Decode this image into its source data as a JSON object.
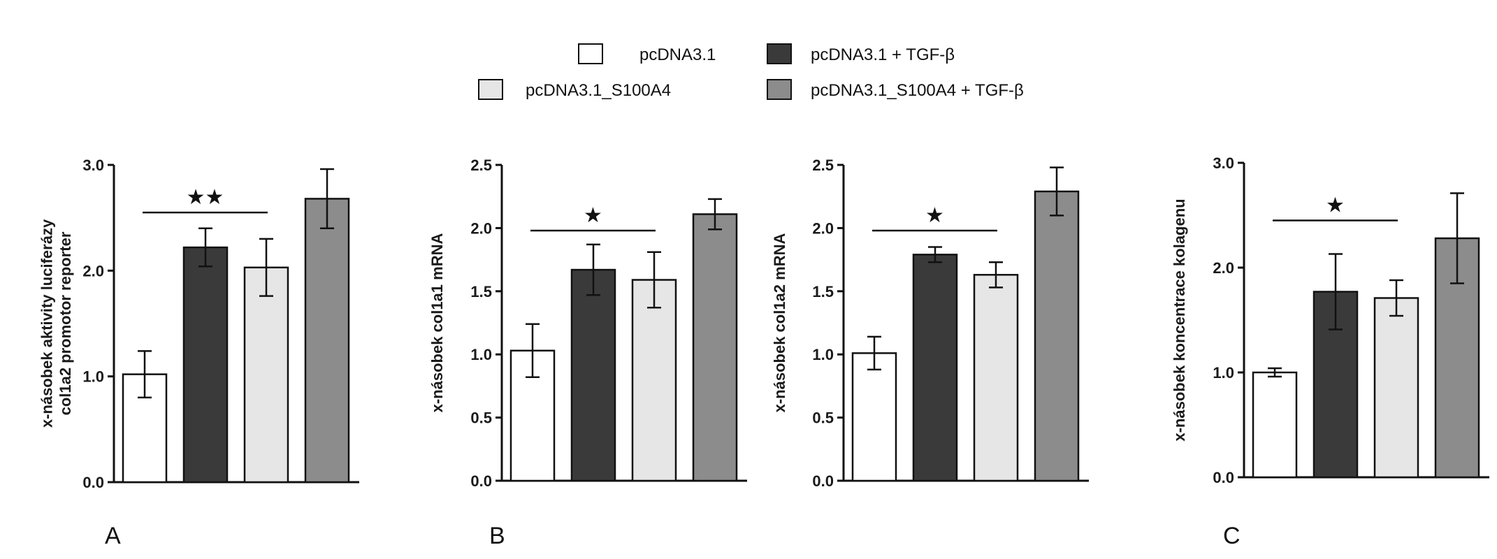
{
  "legend": [
    {
      "label": "pcDNA3.1",
      "color": "#ffffff"
    },
    {
      "label": "pcDNA3.1 + TGF-β",
      "color": "#3a3a3a"
    },
    {
      "label": "pcDNA3.1_S100A4",
      "color": "#e6e6e6"
    },
    {
      "label": "pcDNA3.1_S100A4 + TGF-β",
      "color": "#8c8c8c"
    }
  ],
  "panel_labels": {
    "a": "A",
    "b": "B",
    "c": "C"
  },
  "chart_data": [
    {
      "type": "bar",
      "categories": [
        "pcDNA3.1",
        "pcDNA3.1 + TGF-β",
        "pcDNA3.1_S100A4",
        "pcDNA3.1_S100A4 + TGF-β"
      ],
      "values": [
        1.02,
        2.22,
        2.03,
        2.68
      ],
      "errors": [
        0.22,
        0.18,
        0.27,
        0.28
      ],
      "ylabel": "x-násobek aktivity luciferázy col1a2 promotor reporter",
      "ylabel_lines": [
        "x-násobek aktivity luciferázy",
        "col1a2 promotor reporter"
      ],
      "ylim": [
        0,
        3.0
      ],
      "yticks": [
        "0.0",
        "1.0",
        "2.0",
        "3.0"
      ],
      "significance": {
        "from": 0,
        "to": 2,
        "level": 2.55,
        "marker": "★★"
      }
    },
    {
      "type": "bar",
      "categories": [
        "pcDNA3.1",
        "pcDNA3.1 + TGF-β",
        "pcDNA3.1_S100A4",
        "pcDNA3.1_S100A4 + TGF-β"
      ],
      "values": [
        1.03,
        1.67,
        1.59,
        2.11
      ],
      "errors": [
        0.21,
        0.2,
        0.22,
        0.12
      ],
      "ylabel": "x-násobek col1a1 mRNA",
      "ylabel_lines": [
        "x-násobek col1a1 mRNA"
      ],
      "ylim": [
        0,
        2.5
      ],
      "yticks": [
        "0.0",
        "0.5",
        "1.0",
        "1.5",
        "2.0",
        "2.5"
      ],
      "significance": {
        "from": 0,
        "to": 2,
        "level": 1.98,
        "marker": "★"
      }
    },
    {
      "type": "bar",
      "categories": [
        "pcDNA3.1",
        "pcDNA3.1 + TGF-β",
        "pcDNA3.1_S100A4",
        "pcDNA3.1_S100A4 + TGF-β"
      ],
      "values": [
        1.01,
        1.79,
        1.63,
        2.29
      ],
      "errors": [
        0.13,
        0.06,
        0.1,
        0.19
      ],
      "ylabel": "x-násobek col1a2 mRNA",
      "ylabel_lines": [
        "x-násobek col1a2 mRNA"
      ],
      "ylim": [
        0,
        2.5
      ],
      "yticks": [
        "0.0",
        "0.5",
        "1.0",
        "1.5",
        "2.0",
        "2.5"
      ],
      "significance": {
        "from": 0,
        "to": 2,
        "level": 1.98,
        "marker": "★"
      }
    },
    {
      "type": "bar",
      "categories": [
        "pcDNA3.1",
        "pcDNA3.1 + TGF-β",
        "pcDNA3.1_S100A4",
        "pcDNA3.1_S100A4 + TGF-β"
      ],
      "values": [
        1.0,
        1.77,
        1.71,
        2.28
      ],
      "errors": [
        0.04,
        0.36,
        0.17,
        0.43
      ],
      "ylabel": "x-násobek koncentrace kolagenu",
      "ylabel_lines": [
        "x-násobek koncentrace kolagenu"
      ],
      "ylim": [
        0,
        3.0
      ],
      "yticks": [
        "0.0",
        "1.0",
        "2.0",
        "3.0"
      ],
      "significance": {
        "from": 0,
        "to": 2,
        "level": 2.45,
        "marker": "★"
      }
    }
  ]
}
